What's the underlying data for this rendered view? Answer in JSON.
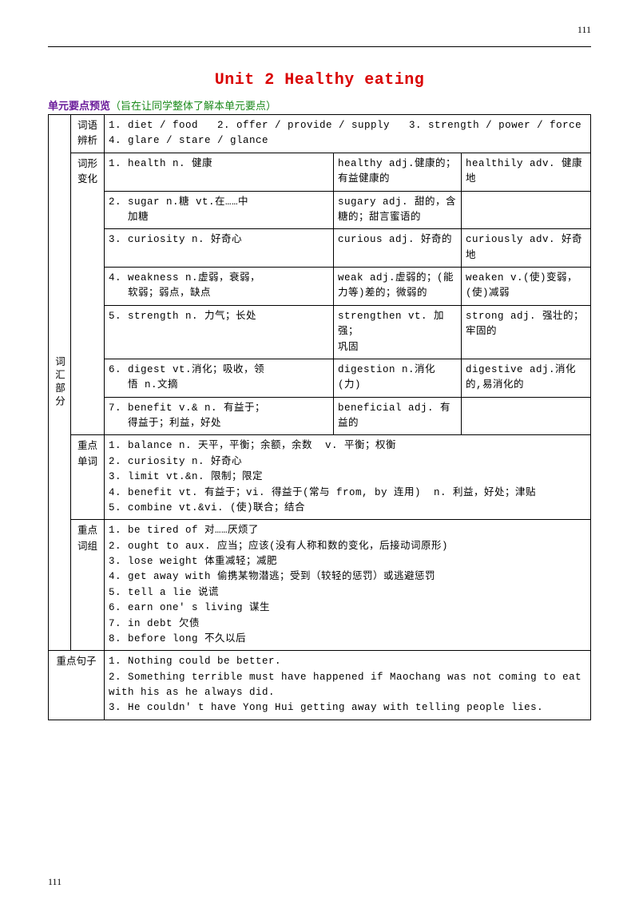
{
  "page_number": "111",
  "title": "Unit 2  Healthy eating",
  "preview": {
    "label": "单元要点预览",
    "note": "（旨在让同学整体了解本单元要点）"
  },
  "section": {
    "vocab": "词汇部分",
    "sentence": "重点句子"
  },
  "labels": {
    "bianxi": "词语辨析",
    "cixing": "词形变化",
    "danci": "重点单词",
    "cizu": "重点词组"
  },
  "bianxi": "1. diet / food   2. offer / provide / supply   3. strength / power / force\n4. glare / stare / glance",
  "cixing": [
    {
      "a": "1. health n. 健康",
      "b": "healthy adj.健康的；有益健康的",
      "c": "healthily adv. 健康地"
    },
    {
      "a": "2. sugar n.糖 vt.在……中\n   加糖",
      "b": "sugary adj. 甜的，含糖的；甜言蜜语的",
      "c": ""
    },
    {
      "a": "3. curiosity n. 好奇心",
      "b": "curious adj. 好奇的",
      "c": "curiously adv. 好奇地"
    },
    {
      "a": "4. weakness n.虚弱，衰弱，\n   软弱；弱点，缺点",
      "b": "weak adj.虚弱的；(能力等)差的；微弱的",
      "c": "weaken v.(使)变弱，(使)减弱"
    },
    {
      "a": "5. strength n. 力气；长处",
      "b": "strengthen vt. 加强；\n巩固",
      "c": "strong adj. 强壮的；牢固的"
    },
    {
      "a": "6. digest vt.消化；吸收，领\n   悟 n.文摘",
      "b": "digestion n.消化(力)",
      "c": "digestive adj.消化的,易消化的"
    },
    {
      "a": "7. benefit v.& n. 有益于；\n   得益于；利益，好处",
      "b": "beneficial adj. 有益的",
      "c": ""
    }
  ],
  "danci": "1. balance n. 天平，平衡；余额，余数  v. 平衡；权衡\n2. curiosity n. 好奇心\n3. limit vt.&n. 限制；限定\n4. benefit vt. 有益于；vi. 得益于(常与 from, by 连用)  n. 利益，好处；津贴\n5. combine vt.&vi. (使)联合；结合",
  "cizu": "1. be tired of 对……厌烦了\n2. ought to aux. 应当；应该(没有人称和数的变化，后接动词原形)\n3. lose weight 体重减轻；减肥\n4. get away with 偷携某物潜逃；受到（较轻的惩罚）或逃避惩罚\n5. tell a lie 说谎\n6. earn one' s living 谋生\n7. in debt 欠债\n8. before long 不久以后",
  "sentences": "1. Nothing could be better.\n2. Something terrible must have happened if Maochang was not coming to eat with his as he always did.\n3. He couldn' t have Yong Hui getting away with telling people lies."
}
